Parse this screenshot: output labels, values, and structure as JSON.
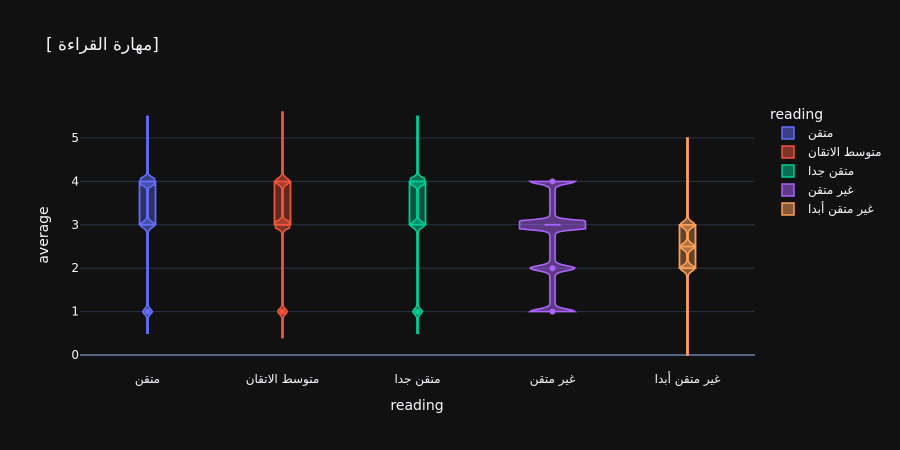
{
  "chart_data": {
    "type": "violin",
    "title": "[ مهارة القراءة]",
    "xlabel": "reading",
    "ylabel": "average",
    "ylim": [
      0,
      5.6
    ],
    "yticks": [
      0,
      1,
      2,
      3,
      4,
      5
    ],
    "grid": true,
    "legend_title": "reading",
    "legend_position": "right",
    "categories": [
      "متقن",
      "متوسط الاتقان",
      "متقن جدا",
      "غير متقن",
      "غير متقن أبدا"
    ],
    "series": [
      {
        "name": "متقن",
        "color": "#636efa",
        "box": {
          "q1": 3,
          "median": 4,
          "q3": 4
        },
        "range": [
          0.5,
          5.5
        ],
        "outliers": [
          1
        ]
      },
      {
        "name": "متوسط الاتقان",
        "color": "#ef553b",
        "box": {
          "q1": 3,
          "median": 3,
          "q3": 4
        },
        "range": [
          0.4,
          5.6
        ],
        "outliers": [
          1
        ]
      },
      {
        "name": "متقن جدا",
        "color": "#00cc96",
        "box": {
          "q1": 3,
          "median": 4,
          "q3": 4
        },
        "range": [
          0.5,
          5.5
        ],
        "outliers": [
          1
        ]
      },
      {
        "name": "غير متقن",
        "color": "#ab63fa",
        "box": {
          "q1": 3,
          "median": 3,
          "q3": 3
        },
        "range": [
          1,
          4
        ],
        "outliers": [
          1,
          2,
          4
        ]
      },
      {
        "name": "غير متقن أبدا",
        "color": "#ffa15a",
        "box": {
          "q1": 2,
          "median": 2.5,
          "q3": 3
        },
        "range": [
          0,
          5
        ],
        "outliers": []
      }
    ]
  }
}
